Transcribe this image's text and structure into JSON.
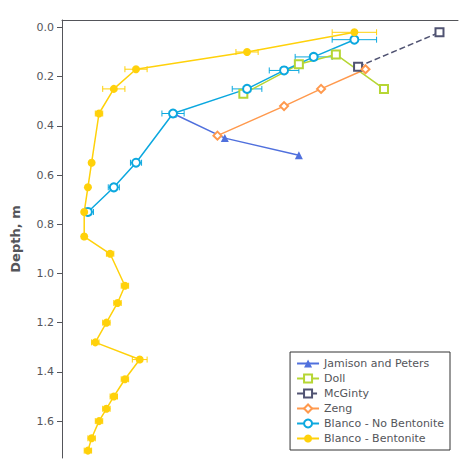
{
  "chart_data": {
    "type": "line",
    "ylabel": "Depth, m",
    "xlim": [
      -2,
      105
    ],
    "ylim": [
      1.75,
      -0.03
    ],
    "yticks": [
      {
        "value": 0,
        "label": "0.0"
      },
      0.2,
      0.4,
      0.6,
      0.8,
      {
        "value": 1.0,
        "label": "1.0"
      },
      1.2,
      1.4,
      1.6
    ],
    "grid": false,
    "legend": "lower right",
    "tick_labels": "y",
    "series": [
      {
        "name": "Jamison and Peters",
        "x": [
          28,
          42,
          62
        ],
        "values": [
          0.35,
          0.45,
          0.52
        ],
        "marker": "triangle",
        "line_style": "solid"
      },
      {
        "name": "Doll",
        "x": [
          47,
          62,
          72,
          85
        ],
        "values": [
          0.27,
          0.15,
          0.11,
          0.25
        ],
        "marker": "open_square",
        "line_style": "solid"
      },
      {
        "name": "McGinty",
        "x": [
          78,
          100
        ],
        "values": [
          0.16,
          0.02
        ],
        "marker": "open_square",
        "line_style": "dashed"
      },
      {
        "name": "Zeng",
        "x": [
          40,
          58,
          68,
          80
        ],
        "values": [
          0.44,
          0.32,
          0.25,
          0.17
        ],
        "marker": "open_diamond",
        "line_style": "solid"
      },
      {
        "name": "Blanco - No Bentonite",
        "x": [
          5,
          12,
          18,
          28,
          48,
          58,
          66,
          77
        ],
        "values": [
          0.75,
          0.65,
          0.55,
          0.35,
          0.25,
          0.175,
          0.12,
          0.05
        ],
        "xerr": [
          1.5,
          1.5,
          1.5,
          3,
          4,
          4,
          5,
          6
        ],
        "marker": "open_circle",
        "line_style": "solid"
      },
      {
        "name": "Blanco - Bentonite",
        "x": [
          77,
          48,
          18,
          12,
          8,
          6,
          5,
          4,
          4,
          11,
          15,
          13,
          10,
          7,
          19,
          15,
          12,
          10,
          8,
          6,
          5
        ],
        "values": [
          0.02,
          0.1,
          0.17,
          0.25,
          0.35,
          0.55,
          0.65,
          0.75,
          0.85,
          0.92,
          1.05,
          1.12,
          1.2,
          1.28,
          1.35,
          1.43,
          1.5,
          1.55,
          1.6,
          1.67,
          1.72
        ],
        "xerr": [
          6,
          3,
          3,
          3,
          1,
          0.5,
          0.5,
          0.5,
          0.5,
          1,
          1,
          1,
          1,
          1,
          2,
          1,
          1,
          1,
          1,
          1,
          1
        ],
        "marker": "circle",
        "line_style": "solid"
      }
    ]
  }
}
